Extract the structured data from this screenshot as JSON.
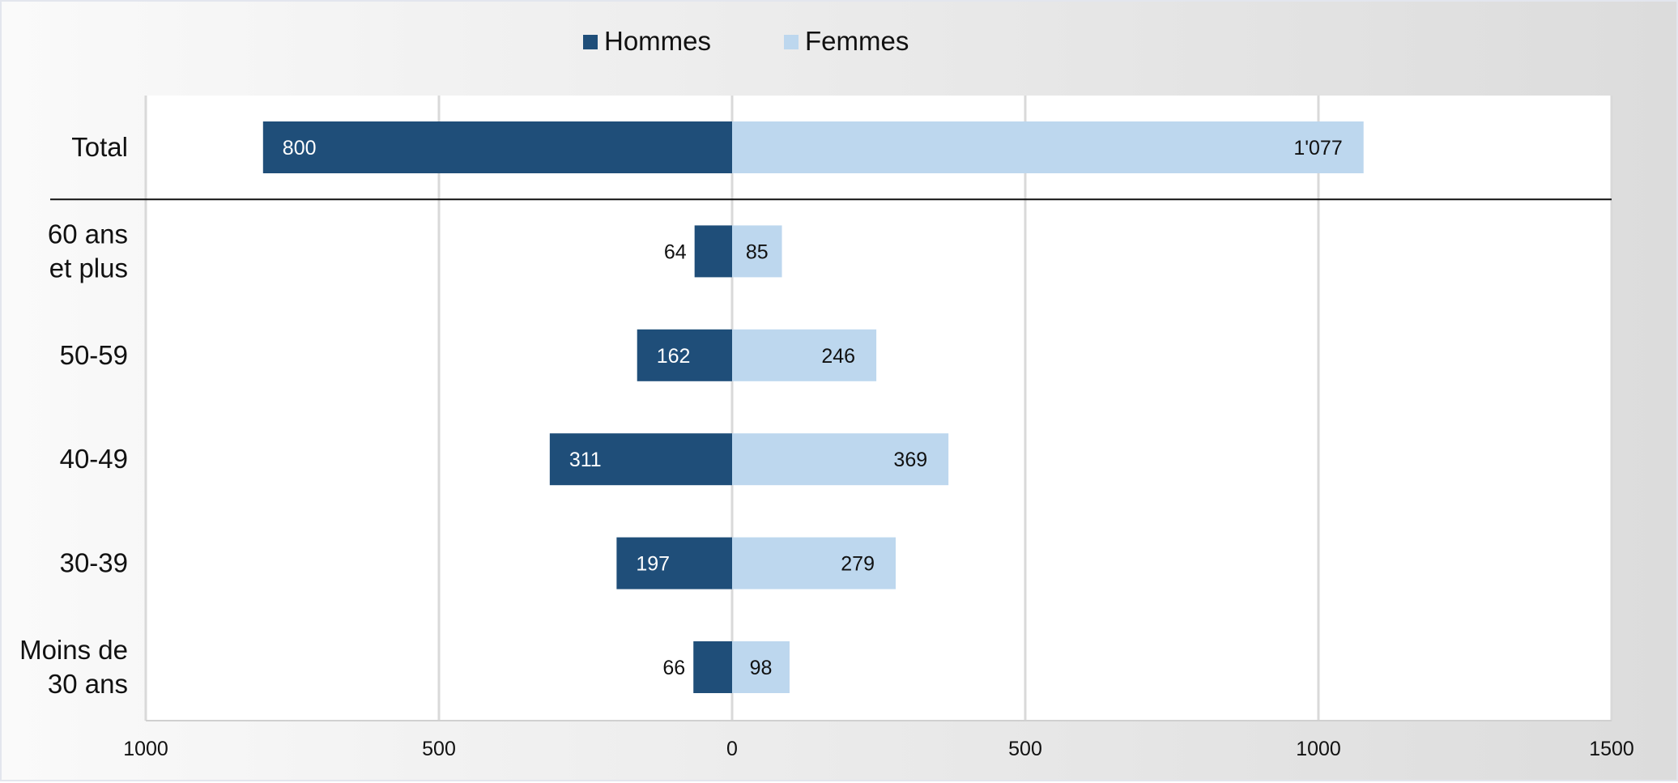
{
  "chart_data": {
    "type": "bar",
    "orientation": "horizontal-diverging",
    "legend_position": "top",
    "series": [
      {
        "name": "Hommes",
        "color": "#1f4e79",
        "values": [
          800,
          64,
          162,
          311,
          197,
          66
        ],
        "labels": [
          "800",
          "64",
          "162",
          "311",
          "197",
          "66"
        ]
      },
      {
        "name": "Femmes",
        "color": "#bdd7ee",
        "values": [
          1077,
          85,
          246,
          369,
          279,
          98
        ],
        "labels": [
          "1'077",
          "85",
          "246",
          "369",
          "279",
          "98"
        ]
      }
    ],
    "categories": [
      [
        "Total"
      ],
      [
        "60 ans",
        "et plus"
      ],
      [
        "50-59"
      ],
      [
        "40-49"
      ],
      [
        "30-39"
      ],
      [
        "Moins de",
        "30 ans"
      ]
    ],
    "xlim": [
      -1000,
      1500
    ],
    "ticks": [
      -1000,
      -500,
      0,
      500,
      1000,
      1500
    ],
    "tick_labels": [
      "1000",
      "500",
      "0",
      "500",
      "1000",
      "1500"
    ],
    "grid": true,
    "separator_after_first_row": true
  }
}
